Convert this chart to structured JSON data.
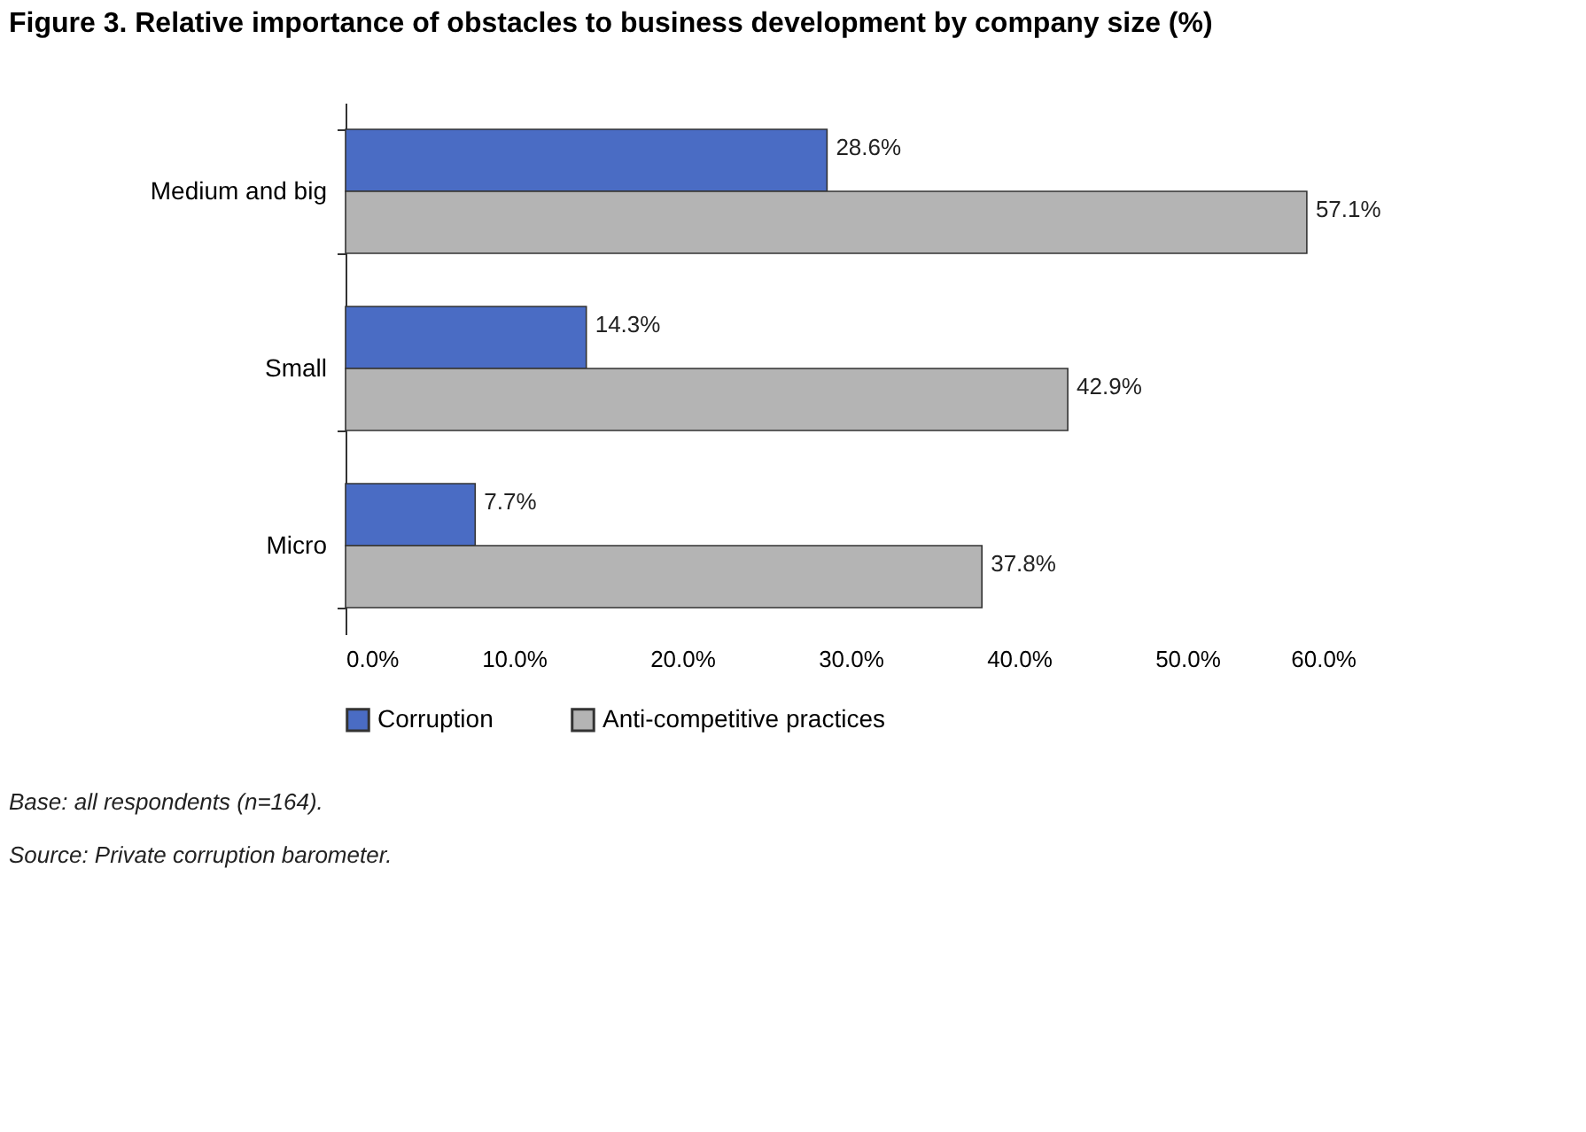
{
  "chart_data": {
    "type": "bar",
    "orientation": "horizontal",
    "title": "Figure 3. Relative importance of obstacles to business development by company size (%)",
    "categories": [
      "Medium and big",
      "Small",
      "Micro"
    ],
    "series": [
      {
        "name": "Corruption",
        "color": "#4a6cc4",
        "values": [
          28.6,
          14.3,
          7.7
        ],
        "value_labels": [
          "28.6%",
          "14.3%",
          "7.7%"
        ]
      },
      {
        "name": "Anti-competitive practices",
        "color": "#b4b4b4",
        "values": [
          57.1,
          42.9,
          37.8
        ],
        "value_labels": [
          "57.1%",
          "42.9%",
          "37.8%"
        ]
      }
    ],
    "xlim": [
      0,
      60
    ],
    "xticks": [
      {
        "value": 0,
        "label": "0.0%"
      },
      {
        "value": 10,
        "label": "10.0%"
      },
      {
        "value": 20,
        "label": "20.0%"
      },
      {
        "value": 30,
        "label": "30.0%"
      },
      {
        "value": 40,
        "label": "40.0%"
      },
      {
        "value": 50,
        "label": "50.0%"
      },
      {
        "value": 60,
        "label": "60.0%"
      }
    ],
    "grid": false,
    "legend": "bottom",
    "annotations": [
      "Base: all respondents (n=164).",
      "Source: Private corruption barometer."
    ]
  }
}
